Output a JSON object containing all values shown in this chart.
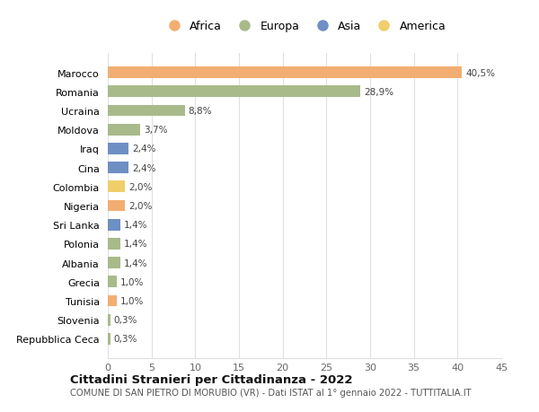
{
  "countries": [
    "Marocco",
    "Romania",
    "Ucraina",
    "Moldova",
    "Iraq",
    "Cina",
    "Colombia",
    "Nigeria",
    "Sri Lanka",
    "Polonia",
    "Albania",
    "Grecia",
    "Tunisia",
    "Slovenia",
    "Repubblica Ceca"
  ],
  "values": [
    40.5,
    28.9,
    8.8,
    3.7,
    2.4,
    2.4,
    2.0,
    2.0,
    1.4,
    1.4,
    1.4,
    1.0,
    1.0,
    0.3,
    0.3
  ],
  "labels": [
    "40,5%",
    "28,9%",
    "8,8%",
    "3,7%",
    "2,4%",
    "2,4%",
    "2,0%",
    "2,0%",
    "1,4%",
    "1,4%",
    "1,4%",
    "1,0%",
    "1,0%",
    "0,3%",
    "0,3%"
  ],
  "continents": [
    "Africa",
    "Europa",
    "Europa",
    "Europa",
    "Asia",
    "Asia",
    "America",
    "Africa",
    "Asia",
    "Europa",
    "Europa",
    "Europa",
    "Africa",
    "Europa",
    "Europa"
  ],
  "colors": {
    "Africa": "#F2AE72",
    "Europa": "#A8BA8A",
    "Asia": "#6E8FC4",
    "America": "#F0CE6A"
  },
  "legend_order": [
    "Africa",
    "Europa",
    "Asia",
    "America"
  ],
  "xlim": [
    0,
    45
  ],
  "xticks": [
    0,
    5,
    10,
    15,
    20,
    25,
    30,
    35,
    40,
    45
  ],
  "title1": "Cittadini Stranieri per Cittadinanza - 2022",
  "title2": "COMUNE DI SAN PIETRO DI MORUBIO (VR) - Dati ISTAT al 1° gennaio 2022 - TUTTITALIA.IT",
  "bg_color": "#ffffff",
  "grid_color": "#e0e0e0",
  "bar_height": 0.6
}
